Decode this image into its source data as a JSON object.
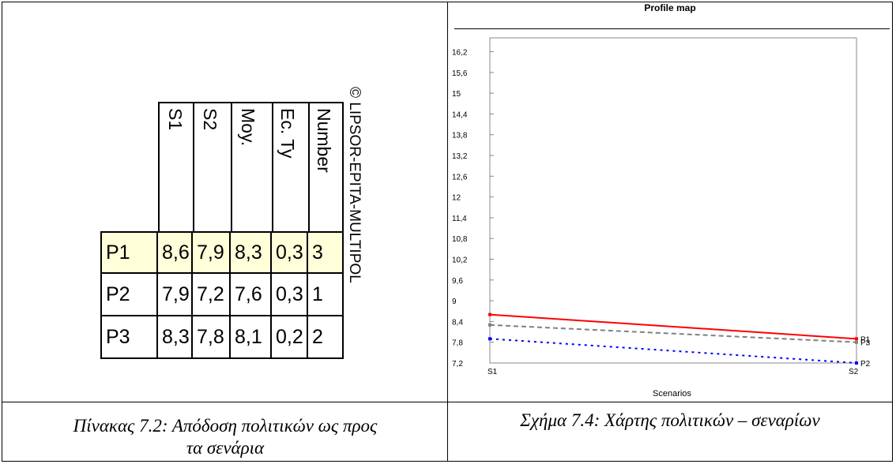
{
  "table": {
    "copyright": "© LIPSOR-EPITA-MULTIPOL",
    "headers": [
      "S1",
      "S2",
      "Moy.",
      "Ec. Ty",
      "Number"
    ],
    "rows": [
      {
        "label": "P1",
        "values": [
          "8,6",
          "7,9",
          "8,3",
          "0,3",
          "3"
        ]
      },
      {
        "label": "P2",
        "values": [
          "7,9",
          "7,2",
          "7,6",
          "0,3",
          "1"
        ]
      },
      {
        "label": "P3",
        "values": [
          "8,3",
          "7,8",
          "8,1",
          "0,2",
          "2"
        ]
      }
    ],
    "caption_line1": "Πίνακας 7.2: Απόδοση πολιτικών ως προς",
    "caption_line2": "τα σενάρια"
  },
  "chart_caption": "Σχήμα 7.4: Χάρτης πολιτικών – σεναρίων",
  "chart_data": {
    "type": "line",
    "title": "Profile map",
    "xlabel": "Scenarios",
    "ylabel": "",
    "x": [
      "S1",
      "S2"
    ],
    "ylim": [
      7.2,
      16.6
    ],
    "yticks": [
      "16,2",
      "15,6",
      "15",
      "14,4",
      "13,8",
      "13,2",
      "12,6",
      "12",
      "11,4",
      "10,8",
      "10,2",
      "9,6",
      "9",
      "8,4",
      "7,8",
      "7,2"
    ],
    "series": [
      {
        "name": "P1",
        "values": [
          8.6,
          7.9
        ],
        "color": "#ff0000",
        "style": "solid"
      },
      {
        "name": "P2",
        "values": [
          7.9,
          7.2
        ],
        "color": "#0000ff",
        "style": "dotted"
      },
      {
        "name": "P3",
        "values": [
          8.3,
          7.8
        ],
        "color": "#808080",
        "style": "dashed"
      }
    ]
  }
}
